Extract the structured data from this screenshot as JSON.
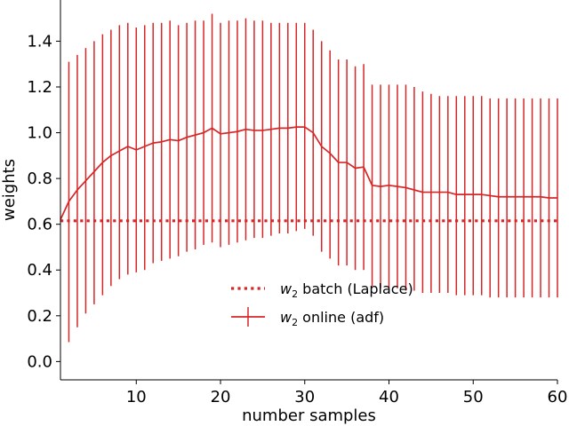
{
  "chart_data": {
    "type": "line",
    "title": "",
    "xlabel": "number samples",
    "ylabel": "weights",
    "xlim": [
      1,
      60
    ],
    "ylim": [
      -0.08,
      1.58
    ],
    "xticks": [
      10,
      20,
      30,
      40,
      50,
      60
    ],
    "yticks": [
      0.0,
      0.2,
      0.4,
      0.6,
      0.8,
      1.0,
      1.2,
      1.4
    ],
    "grid": false,
    "legend_position": "lower-center",
    "color": "#d62728",
    "series": [
      {
        "name": "w2 batch (Laplace)",
        "name_base": "w",
        "name_sub": "2",
        "name_rest": " batch (Laplace)",
        "style": "dotted",
        "constant": 0.615
      },
      {
        "name": "w2 online (adf)",
        "name_base": "w",
        "name_sub": "2",
        "name_rest": " online (adf)",
        "style": "solid-errorbar",
        "x": [
          1,
          2,
          3,
          4,
          5,
          6,
          7,
          8,
          9,
          10,
          11,
          12,
          13,
          14,
          15,
          16,
          17,
          18,
          19,
          20,
          21,
          22,
          23,
          24,
          25,
          26,
          27,
          28,
          29,
          30,
          31,
          32,
          33,
          34,
          35,
          36,
          37,
          38,
          39,
          40,
          41,
          42,
          43,
          44,
          45,
          46,
          47,
          48,
          49,
          50,
          51,
          52,
          53,
          54,
          55,
          56,
          57,
          58,
          59,
          60
        ],
        "y": [
          0.62,
          0.7,
          0.75,
          0.79,
          0.83,
          0.87,
          0.9,
          0.92,
          0.94,
          0.925,
          0.94,
          0.955,
          0.96,
          0.97,
          0.965,
          0.98,
          0.99,
          1.0,
          1.02,
          0.995,
          1.0,
          1.005,
          1.015,
          1.01,
          1.01,
          1.015,
          1.02,
          1.02,
          1.025,
          1.025,
          1.0,
          0.94,
          0.91,
          0.87,
          0.87,
          0.845,
          0.85,
          0.77,
          0.765,
          0.77,
          0.765,
          0.76,
          0.75,
          0.74,
          0.74,
          0.74,
          0.74,
          0.73,
          0.73,
          0.73,
          0.73,
          0.725,
          0.72,
          0.72,
          0.72,
          0.72,
          0.72,
          0.72,
          0.715,
          0.715
        ],
        "yerr_low": [
          0.62,
          0.085,
          0.15,
          0.21,
          0.25,
          0.29,
          0.33,
          0.36,
          0.38,
          0.39,
          0.4,
          0.43,
          0.44,
          0.45,
          0.46,
          0.48,
          0.49,
          0.51,
          0.52,
          0.5,
          0.51,
          0.52,
          0.53,
          0.54,
          0.54,
          0.55,
          0.56,
          0.56,
          0.57,
          0.58,
          0.55,
          0.48,
          0.45,
          0.42,
          0.42,
          0.4,
          0.4,
          0.33,
          0.32,
          0.32,
          0.32,
          0.31,
          0.31,
          0.3,
          0.3,
          0.3,
          0.3,
          0.29,
          0.29,
          0.29,
          0.29,
          0.28,
          0.28,
          0.28,
          0.28,
          0.28,
          0.28,
          0.28,
          0.28,
          0.28
        ],
        "yerr_high": [
          0.62,
          1.31,
          1.34,
          1.37,
          1.4,
          1.43,
          1.45,
          1.47,
          1.48,
          1.46,
          1.47,
          1.48,
          1.48,
          1.49,
          1.47,
          1.48,
          1.49,
          1.49,
          1.52,
          1.48,
          1.49,
          1.49,
          1.5,
          1.49,
          1.49,
          1.48,
          1.48,
          1.48,
          1.48,
          1.48,
          1.45,
          1.4,
          1.36,
          1.32,
          1.32,
          1.29,
          1.3,
          1.21,
          1.21,
          1.21,
          1.21,
          1.21,
          1.2,
          1.18,
          1.17,
          1.16,
          1.16,
          1.16,
          1.16,
          1.16,
          1.16,
          1.15,
          1.15,
          1.15,
          1.15,
          1.15,
          1.15,
          1.15,
          1.15,
          1.15
        ]
      }
    ]
  }
}
